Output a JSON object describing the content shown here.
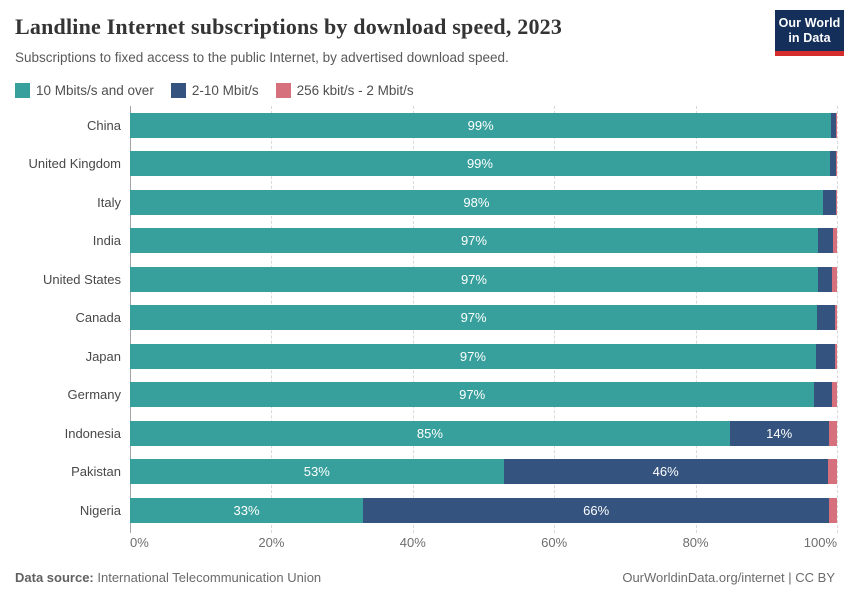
{
  "header": {
    "title": "Landline Internet subscriptions by download speed, 2023",
    "subtitle": "Subscriptions to fixed access to the public Internet, by advertised download speed.",
    "logo": {
      "line1": "Our World",
      "line2": "in Data",
      "bg_color": "#132f5a",
      "accent_color": "#d42b2b"
    }
  },
  "legend": [
    {
      "label": "10 Mbits/s and over",
      "color": "#38a09c"
    },
    {
      "label": "2-10 Mbit/s",
      "color": "#34537e"
    },
    {
      "label": "256 kbit/s - 2 Mbit/s",
      "color": "#d6707d"
    }
  ],
  "chart_data": {
    "type": "bar",
    "orientation": "horizontal",
    "stacked": true,
    "unit": "%",
    "xlim": [
      0,
      100
    ],
    "grid": "vertical-dashed",
    "legend_position": "top",
    "x_ticks": [
      "0%",
      "20%",
      "40%",
      "60%",
      "80%",
      "100%"
    ],
    "x_tick_positions": [
      0,
      20,
      40,
      60,
      80,
      100
    ],
    "series_names": [
      "10 Mbits/s and over",
      "2-10 Mbit/s",
      "256 kbit/s - 2 Mbit/s"
    ],
    "rows": [
      {
        "country": "China",
        "values": [
          99.2,
          0.7,
          0.1
        ],
        "labels": [
          "99%",
          "",
          ""
        ]
      },
      {
        "country": "United Kingdom",
        "values": [
          99.0,
          0.8,
          0.2
        ],
        "labels": [
          "99%",
          "",
          ""
        ]
      },
      {
        "country": "Italy",
        "values": [
          98.0,
          1.8,
          0.2
        ],
        "labels": [
          "98%",
          "",
          ""
        ]
      },
      {
        "country": "India",
        "values": [
          97.3,
          2.1,
          0.6
        ],
        "labels": [
          "97%",
          "",
          ""
        ]
      },
      {
        "country": "United States",
        "values": [
          97.3,
          2.0,
          0.7
        ],
        "labels": [
          "97%",
          "",
          ""
        ]
      },
      {
        "country": "Canada",
        "values": [
          97.2,
          2.5,
          0.3
        ],
        "labels": [
          "97%",
          "",
          ""
        ]
      },
      {
        "country": "Japan",
        "values": [
          97.0,
          2.7,
          0.3
        ],
        "labels": [
          "97%",
          "",
          ""
        ]
      },
      {
        "country": "Germany",
        "values": [
          96.8,
          2.5,
          0.7
        ],
        "labels": [
          "97%",
          "",
          ""
        ]
      },
      {
        "country": "Indonesia",
        "values": [
          85.0,
          14.0,
          1.2
        ],
        "labels": [
          "85%",
          "14%",
          ""
        ]
      },
      {
        "country": "Pakistan",
        "values": [
          53.0,
          46.0,
          1.3
        ],
        "labels": [
          "53%",
          "46%",
          ""
        ]
      },
      {
        "country": "Nigeria",
        "values": [
          33.0,
          66.0,
          1.1
        ],
        "labels": [
          "33%",
          "66%",
          ""
        ]
      }
    ]
  },
  "footer": {
    "source_label": "Data source:",
    "source": "International Telecommunication Union",
    "credit": "OurWorldinData.org/internet | CC BY"
  }
}
